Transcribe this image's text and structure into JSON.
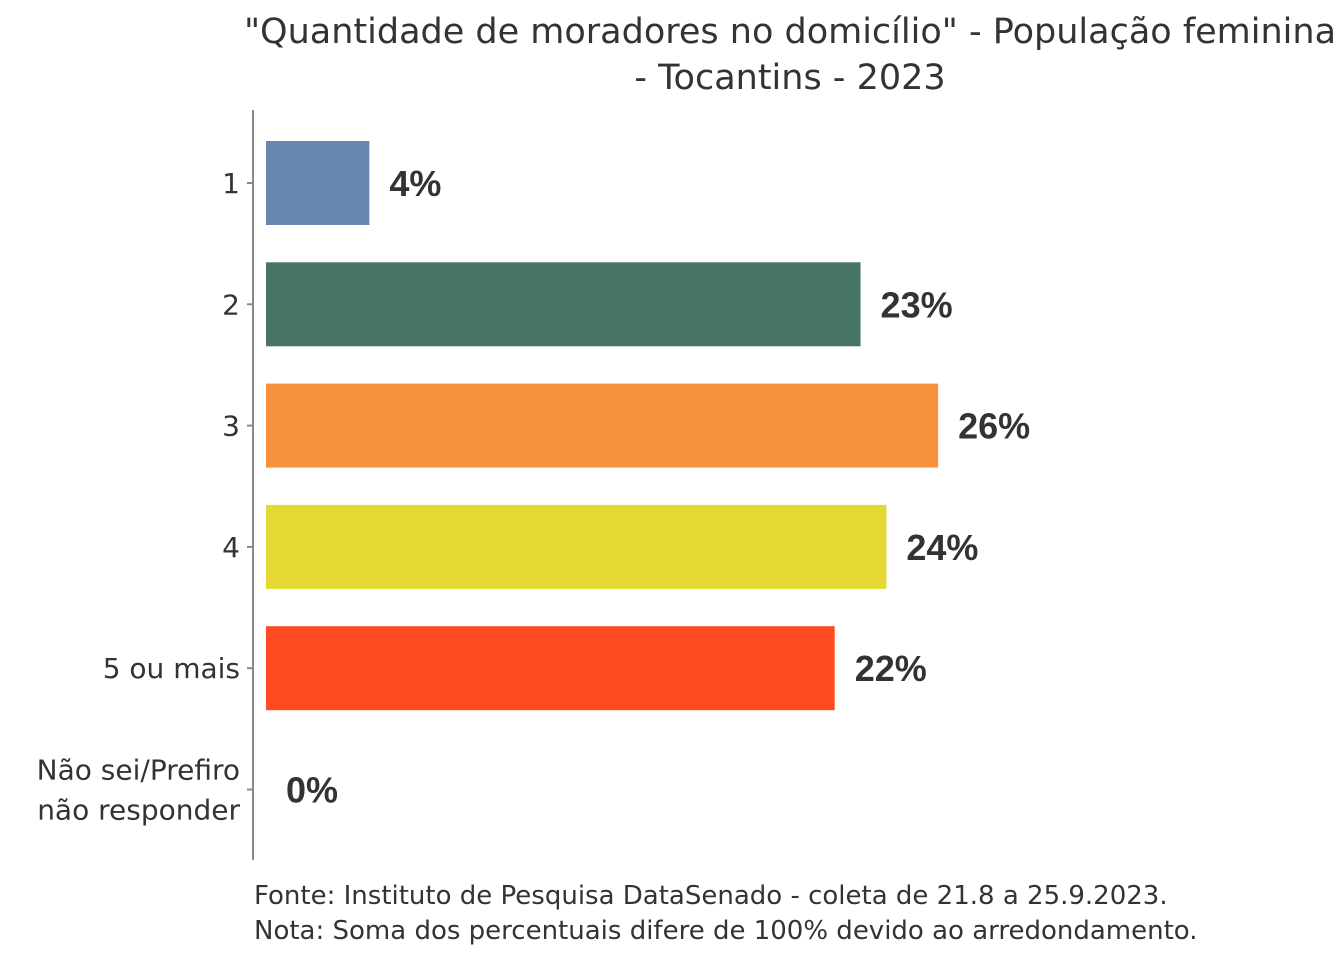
{
  "chart_data": {
    "type": "bar",
    "orientation": "horizontal",
    "title": [
      "\"Quantidade de moradores no domicílio\" - População feminina",
      "- Tocantins - 2023"
    ],
    "categories": [
      "1",
      "2",
      "3",
      "4",
      "5 ou mais",
      "Não sei/Prefiro não responder"
    ],
    "category_lines": [
      [
        "1"
      ],
      [
        "2"
      ],
      [
        "3"
      ],
      [
        "4"
      ],
      [
        "5 ou mais"
      ],
      [
        "Não sei/Prefiro",
        "não responder"
      ]
    ],
    "values": [
      4,
      23,
      26,
      24,
      22,
      0
    ],
    "value_labels": [
      "4%",
      "23%",
      "26%",
      "24%",
      "22%",
      "0%"
    ],
    "colors": [
      "#6688ae",
      "#467563",
      "#f8913c",
      "#e5d833",
      "#ff4b21",
      "#999999"
    ],
    "xlim": [
      0,
      30
    ],
    "grid": false,
    "xlabel": "",
    "ylabel": ""
  },
  "footer": {
    "source": "Fonte: Instituto de Pesquisa DataSenado - coleta de 21.8 a 25.9.2023.",
    "note": "Nota: Soma dos percentuais difere de 100% devido ao arredondamento."
  }
}
